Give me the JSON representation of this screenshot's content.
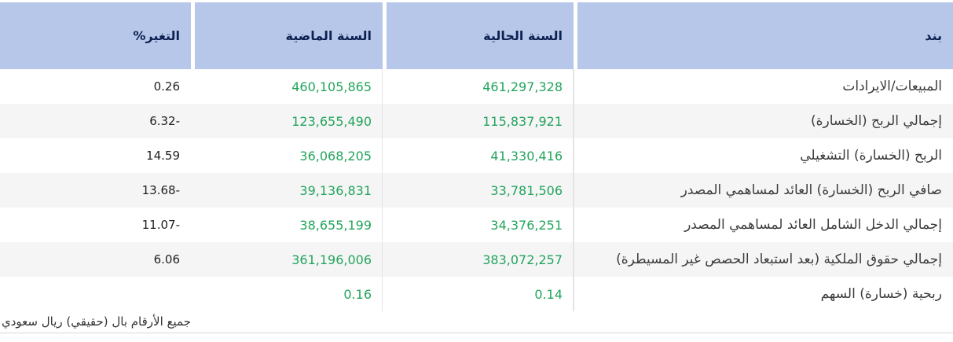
{
  "page": {
    "footnote": "جميع الأرقام بال (حقيقي) ريال سعودي"
  },
  "table": {
    "columns": [
      {
        "key": "item",
        "label": "بند"
      },
      {
        "key": "current",
        "label": "السنة الحالية"
      },
      {
        "key": "previous",
        "label": "السنة الماضية"
      },
      {
        "key": "change",
        "label": "التغير%"
      }
    ],
    "rows": [
      {
        "item": "المبيعات/الايرادات",
        "current": "461,297,328",
        "previous": "460,105,865",
        "change": "0.26"
      },
      {
        "item": "إجمالي الربح (الخسارة)",
        "current": "115,837,921",
        "previous": "123,655,490",
        "change": "6.32-"
      },
      {
        "item": "الربح (الخسارة) التشغيلي",
        "current": "41,330,416",
        "previous": "36,068,205",
        "change": "14.59"
      },
      {
        "item": "صافي الربح (الخسارة) العائد لمساهمي المصدر",
        "current": "33,781,506",
        "previous": "39,136,831",
        "change": "13.68-"
      },
      {
        "item": "إجمالي الدخل الشامل العائد لمساهمي المصدر",
        "current": "34,376,251",
        "previous": "38,655,199",
        "change": "11.07-"
      },
      {
        "item": "إجمالي حقوق الملكية (بعد استبعاد الحصص غير المسيطرة)",
        "current": "383,072,257",
        "previous": "361,196,006",
        "change": "6.06"
      },
      {
        "item": "ربحية (خسارة) السهم",
        "current": "0.14",
        "previous": "0.16",
        "change": ""
      }
    ]
  },
  "colors": {
    "header_bg": "#b6c7e9",
    "header_text": "#0e2050",
    "value_green": "#23a45c",
    "change_text": "#1f1f1f",
    "item_text": "#3c3c3c",
    "row_stripe": "#f5f5f6",
    "column_divider": "#e4e4e6",
    "bottom_divider": "#d9d9d9"
  }
}
